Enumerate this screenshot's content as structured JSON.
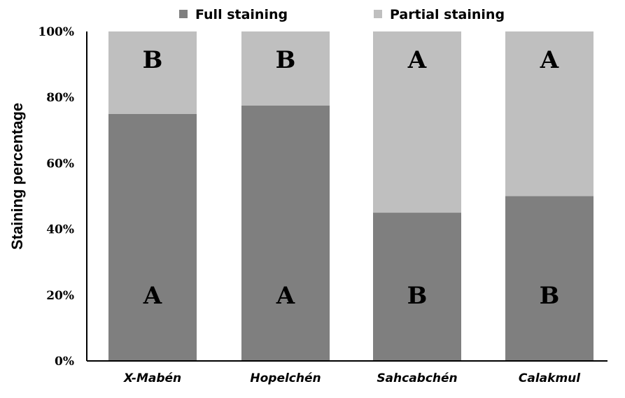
{
  "chart_data": {
    "type": "bar",
    "stacked": true,
    "title": "",
    "xlabel": "",
    "ylabel": "Staining percentage",
    "ylim": [
      0,
      100
    ],
    "yticks": [
      0,
      20,
      40,
      60,
      80,
      100
    ],
    "ytick_suffix": "%",
    "categories": [
      "X-Mabén",
      "Hopelchén",
      "Sahcabchén",
      "Calakmul"
    ],
    "series": [
      {
        "name": "Full staining",
        "color": "#7f7f7f",
        "values": [
          75,
          77.5,
          45,
          50
        ],
        "letters": [
          "A",
          "A",
          "B",
          "B"
        ]
      },
      {
        "name": "Partial staining",
        "color": "#bfbfbf",
        "values": [
          25,
          22.5,
          55,
          50
        ],
        "letters": [
          "B",
          "B",
          "A",
          "A"
        ]
      }
    ],
    "legend_position": "top",
    "grid": false
  }
}
